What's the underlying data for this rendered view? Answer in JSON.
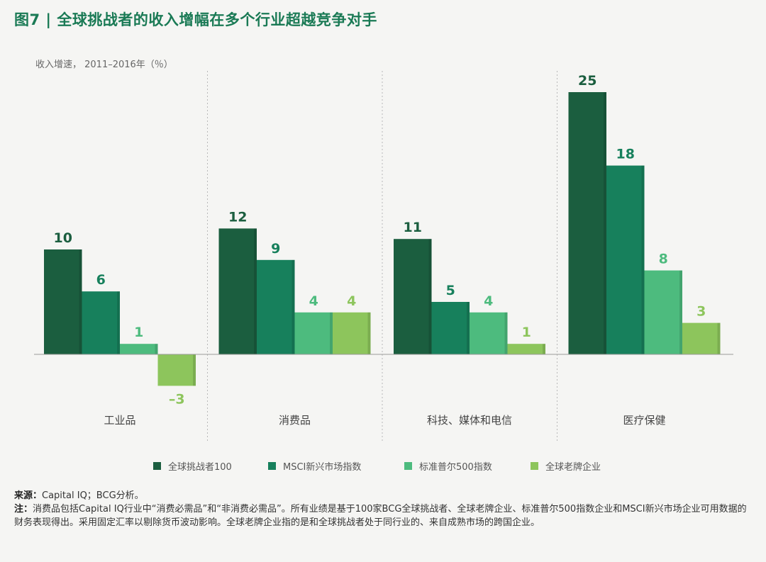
{
  "title": "图7 | 全球挑战者的收入增幅在多个行业超越竞争对手",
  "colors": {
    "title": "#1a7a55",
    "series": [
      "#1b5e3f",
      "#17805c",
      "#4dbb7e",
      "#8dc55c"
    ]
  },
  "chart_data": {
    "type": "bar",
    "title": "图7 | 全球挑战者的收入增幅在多个行业超越竞争对手",
    "ylabel": "收入增速， 2011–2016年（％）",
    "xlabel": "",
    "categories": [
      "工业品",
      "消费品",
      "科技、媒体和电信",
      "医疗保健"
    ],
    "series": [
      {
        "name": "全球挑战者100",
        "values": [
          10,
          12,
          11,
          25
        ],
        "labels": [
          "10",
          "12",
          "11",
          "25"
        ]
      },
      {
        "name": "MSCI新兴市场指数",
        "values": [
          6,
          9,
          5,
          18
        ],
        "labels": [
          "6",
          "9",
          "5",
          "18"
        ]
      },
      {
        "name": "标准普尔500指数",
        "values": [
          1,
          4,
          4,
          8
        ],
        "labels": [
          "1",
          "4",
          "4",
          "8"
        ]
      },
      {
        "name": "全球老牌企业",
        "values": [
          -3,
          4,
          1,
          3
        ],
        "labels": [
          "–3",
          "4",
          "1",
          "3"
        ]
      }
    ],
    "ylim": [
      -3,
      25
    ],
    "grid": false,
    "legend": "bottom"
  },
  "notes": {
    "source_label": "来源：",
    "source_text": "Capital IQ；BCG分析。",
    "note_label": "注：",
    "note_text": "消费品包括Capital IQ行业中“消费必需品”和“非消费必需品”。所有业绩是基于100家BCG全球挑战者、全球老牌企业、标准普尔500指数企业和MSCI新兴市场企业可用数据的财务表现得出。采用固定汇率以剔除货币波动影响。全球老牌企业指的是和全球挑战者处于同行业的、来自成熟市场的跨国企业。"
  }
}
